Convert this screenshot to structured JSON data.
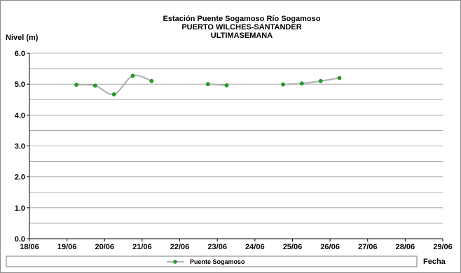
{
  "chart_data": {
    "type": "line",
    "title_lines": [
      "Estación Puente Sogamoso Río Sogamoso",
      "PUERTO WILCHES-SANTANDER",
      "ULTIMASEMANA"
    ],
    "ylabel": "Nivel (m)",
    "xlabel": "Fecha",
    "ylim": [
      0,
      6
    ],
    "yticks": [
      "0.0",
      "1.0",
      "2.0",
      "3.0",
      "4.0",
      "5.0",
      "6.0"
    ],
    "xticks": [
      "18/06",
      "19/06",
      "20/06",
      "21/06",
      "22/06",
      "23/06",
      "24/06",
      "25/06",
      "26/06",
      "27/06",
      "28/06",
      "29/06"
    ],
    "xlim_days": [
      0,
      11
    ],
    "grid": "horizontal",
    "legend_position": "bottom",
    "series": [
      {
        "name": "Puente Sogamoso",
        "line_color": "#b3b3b3",
        "marker_color": "#1aa31a",
        "segments": [
          {
            "points": [
              {
                "x": "19/06 06:00",
                "y": 4.98
              },
              {
                "x": "19/06 18:00",
                "y": 4.95
              },
              {
                "x": "20/06 06:00",
                "y": 4.67
              },
              {
                "x": "20/06 18:00",
                "y": 5.27
              },
              {
                "x": "21/06 06:00",
                "y": 5.1
              }
            ]
          },
          {
            "points": [
              {
                "x": "22/06 18:00",
                "y": 5.0
              },
              {
                "x": "23/06 06:00",
                "y": 4.96
              }
            ]
          },
          {
            "points": [
              {
                "x": "24/06 18:00",
                "y": 4.99
              },
              {
                "x": "25/06 06:00",
                "y": 5.02
              },
              {
                "x": "25/06 18:00",
                "y": 5.1
              },
              {
                "x": "26/06 06:00",
                "y": 5.2
              }
            ]
          }
        ]
      }
    ]
  }
}
